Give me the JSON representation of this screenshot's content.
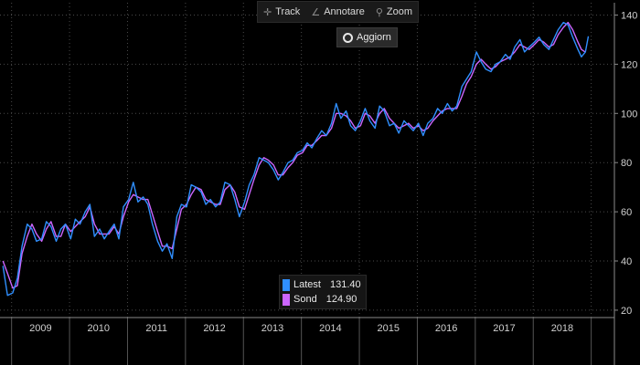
{
  "toolbar": {
    "track_label": "Track",
    "track_icon": "crosshair-icon",
    "annotate_label": "Annotare",
    "annotate_icon": "pencil-icon",
    "zoom_label": "Zoom",
    "zoom_icon": "magnifier-icon"
  },
  "refresh": {
    "label": "Aggiorn",
    "icon": "refresh-icon"
  },
  "legend": {
    "items": [
      {
        "label": "Latest",
        "value": "131.40",
        "color": "#2f8fff"
      },
      {
        "label": "Sond",
        "value": "124.90",
        "color": "#cc66ff"
      }
    ]
  },
  "chart_data": {
    "type": "line",
    "x_unit": "year (fractional)",
    "xlim": [
      2008.8,
      2019.4
    ],
    "ylim": [
      17,
      145
    ],
    "y_ticks": [
      "20",
      "40",
      "60",
      "80",
      "100",
      "120",
      "140"
    ],
    "x_tick_labels": [
      "2009",
      "2010",
      "2011",
      "2012",
      "2013",
      "2014",
      "2015",
      "2016",
      "2017",
      "2018"
    ],
    "grid": true,
    "legend_position": "bottom-center",
    "series": [
      {
        "name": "Latest",
        "color": "#2f8fff",
        "points": [
          [
            2008.85,
            38
          ],
          [
            2008.93,
            26
          ],
          [
            2009.02,
            27
          ],
          [
            2009.1,
            33
          ],
          [
            2009.18,
            46
          ],
          [
            2009.27,
            55
          ],
          [
            2009.35,
            53
          ],
          [
            2009.43,
            48
          ],
          [
            2009.52,
            49
          ],
          [
            2009.6,
            56
          ],
          [
            2009.68,
            54
          ],
          [
            2009.77,
            48
          ],
          [
            2009.85,
            53
          ],
          [
            2009.93,
            55
          ],
          [
            2010.02,
            49
          ],
          [
            2010.1,
            57
          ],
          [
            2010.18,
            55
          ],
          [
            2010.27,
            60
          ],
          [
            2010.35,
            63
          ],
          [
            2010.43,
            50
          ],
          [
            2010.52,
            53
          ],
          [
            2010.6,
            49
          ],
          [
            2010.68,
            52
          ],
          [
            2010.77,
            55
          ],
          [
            2010.85,
            49
          ],
          [
            2010.93,
            62
          ],
          [
            2011.02,
            65
          ],
          [
            2011.1,
            72
          ],
          [
            2011.18,
            64
          ],
          [
            2011.27,
            66
          ],
          [
            2011.35,
            63
          ],
          [
            2011.43,
            55
          ],
          [
            2011.52,
            48
          ],
          [
            2011.6,
            44
          ],
          [
            2011.68,
            47
          ],
          [
            2011.77,
            41
          ],
          [
            2011.85,
            58
          ],
          [
            2011.93,
            63
          ],
          [
            2012.02,
            62
          ],
          [
            2012.1,
            71
          ],
          [
            2012.18,
            70
          ],
          [
            2012.27,
            68
          ],
          [
            2012.35,
            63
          ],
          [
            2012.43,
            65
          ],
          [
            2012.52,
            62
          ],
          [
            2012.6,
            64
          ],
          [
            2012.68,
            72
          ],
          [
            2012.77,
            71
          ],
          [
            2012.85,
            65
          ],
          [
            2012.93,
            58
          ],
          [
            2013.02,
            64
          ],
          [
            2013.1,
            71
          ],
          [
            2013.18,
            75
          ],
          [
            2013.27,
            82
          ],
          [
            2013.35,
            81
          ],
          [
            2013.43,
            80
          ],
          [
            2013.52,
            77
          ],
          [
            2013.6,
            73
          ],
          [
            2013.68,
            76
          ],
          [
            2013.77,
            80
          ],
          [
            2013.85,
            81
          ],
          [
            2013.93,
            84
          ],
          [
            2014.02,
            85
          ],
          [
            2014.1,
            88
          ],
          [
            2014.18,
            86
          ],
          [
            2014.27,
            90
          ],
          [
            2014.35,
            93
          ],
          [
            2014.43,
            91
          ],
          [
            2014.52,
            96
          ],
          [
            2014.6,
            104
          ],
          [
            2014.68,
            98
          ],
          [
            2014.77,
            101
          ],
          [
            2014.85,
            95
          ],
          [
            2014.93,
            93
          ],
          [
            2015.02,
            97
          ],
          [
            2015.1,
            102
          ],
          [
            2015.18,
            97
          ],
          [
            2015.27,
            94
          ],
          [
            2015.35,
            103
          ],
          [
            2015.43,
            101
          ],
          [
            2015.52,
            95
          ],
          [
            2015.6,
            96
          ],
          [
            2015.68,
            92
          ],
          [
            2015.77,
            97
          ],
          [
            2015.85,
            95
          ],
          [
            2015.93,
            93
          ],
          [
            2016.02,
            96
          ],
          [
            2016.1,
            91
          ],
          [
            2016.18,
            96
          ],
          [
            2016.27,
            98
          ],
          [
            2016.35,
            102
          ],
          [
            2016.43,
            100
          ],
          [
            2016.52,
            104
          ],
          [
            2016.6,
            101
          ],
          [
            2016.68,
            103
          ],
          [
            2016.77,
            111
          ],
          [
            2016.85,
            114
          ],
          [
            2016.93,
            117
          ],
          [
            2017.02,
            125
          ],
          [
            2017.1,
            121
          ],
          [
            2017.18,
            118
          ],
          [
            2017.27,
            117
          ],
          [
            2017.35,
            120
          ],
          [
            2017.43,
            121
          ],
          [
            2017.52,
            124
          ],
          [
            2017.6,
            122
          ],
          [
            2017.68,
            127
          ],
          [
            2017.77,
            130
          ],
          [
            2017.85,
            125
          ],
          [
            2017.93,
            127
          ],
          [
            2018.02,
            129
          ],
          [
            2018.1,
            131
          ],
          [
            2018.18,
            128
          ],
          [
            2018.27,
            126
          ],
          [
            2018.35,
            130
          ],
          [
            2018.43,
            134
          ],
          [
            2018.52,
            137
          ],
          [
            2018.6,
            136
          ],
          [
            2018.68,
            131
          ],
          [
            2018.77,
            126
          ],
          [
            2018.83,
            123
          ],
          [
            2018.9,
            125
          ],
          [
            2018.95,
            131.4
          ]
        ]
      },
      {
        "name": "Sond",
        "color": "#cc66ff",
        "points": [
          [
            2008.85,
            40
          ],
          [
            2008.93,
            35
          ],
          [
            2009.02,
            29
          ],
          [
            2009.1,
            30
          ],
          [
            2009.18,
            43
          ],
          [
            2009.27,
            50
          ],
          [
            2009.35,
            55
          ],
          [
            2009.43,
            51
          ],
          [
            2009.52,
            48
          ],
          [
            2009.6,
            53
          ],
          [
            2009.68,
            56
          ],
          [
            2009.77,
            50
          ],
          [
            2009.85,
            50
          ],
          [
            2009.93,
            55
          ],
          [
            2010.02,
            52
          ],
          [
            2010.1,
            54
          ],
          [
            2010.18,
            56
          ],
          [
            2010.27,
            58
          ],
          [
            2010.35,
            62
          ],
          [
            2010.43,
            55
          ],
          [
            2010.52,
            51
          ],
          [
            2010.6,
            51
          ],
          [
            2010.68,
            51
          ],
          [
            2010.77,
            54
          ],
          [
            2010.85,
            51
          ],
          [
            2010.93,
            58
          ],
          [
            2011.02,
            64
          ],
          [
            2011.1,
            67
          ],
          [
            2011.18,
            66
          ],
          [
            2011.27,
            65
          ],
          [
            2011.35,
            65
          ],
          [
            2011.43,
            59
          ],
          [
            2011.52,
            52
          ],
          [
            2011.6,
            46
          ],
          [
            2011.68,
            46
          ],
          [
            2011.77,
            45
          ],
          [
            2011.85,
            53
          ],
          [
            2011.93,
            61
          ],
          [
            2012.02,
            63
          ],
          [
            2012.1,
            67
          ],
          [
            2012.18,
            70
          ],
          [
            2012.27,
            69
          ],
          [
            2012.35,
            65
          ],
          [
            2012.43,
            64
          ],
          [
            2012.52,
            63
          ],
          [
            2012.6,
            63
          ],
          [
            2012.68,
            69
          ],
          [
            2012.77,
            71
          ],
          [
            2012.85,
            68
          ],
          [
            2012.93,
            62
          ],
          [
            2013.02,
            61
          ],
          [
            2013.1,
            67
          ],
          [
            2013.18,
            73
          ],
          [
            2013.27,
            79
          ],
          [
            2013.35,
            82
          ],
          [
            2013.43,
            81
          ],
          [
            2013.52,
            79
          ],
          [
            2013.6,
            75
          ],
          [
            2013.68,
            75
          ],
          [
            2013.77,
            78
          ],
          [
            2013.85,
            80
          ],
          [
            2013.93,
            83
          ],
          [
            2014.02,
            84
          ],
          [
            2014.1,
            87
          ],
          [
            2014.18,
            87
          ],
          [
            2014.27,
            89
          ],
          [
            2014.35,
            91
          ],
          [
            2014.43,
            91
          ],
          [
            2014.52,
            94
          ],
          [
            2014.6,
            100
          ],
          [
            2014.68,
            100
          ],
          [
            2014.77,
            99
          ],
          [
            2014.85,
            97
          ],
          [
            2014.93,
            94
          ],
          [
            2015.02,
            95
          ],
          [
            2015.1,
            100
          ],
          [
            2015.18,
            99
          ],
          [
            2015.27,
            96
          ],
          [
            2015.35,
            100
          ],
          [
            2015.43,
            102
          ],
          [
            2015.52,
            98
          ],
          [
            2015.6,
            96
          ],
          [
            2015.68,
            94
          ],
          [
            2015.77,
            95
          ],
          [
            2015.85,
            96
          ],
          [
            2015.93,
            94
          ],
          [
            2016.02,
            95
          ],
          [
            2016.1,
            93
          ],
          [
            2016.18,
            94
          ],
          [
            2016.27,
            97
          ],
          [
            2016.35,
            99
          ],
          [
            2016.43,
            101
          ],
          [
            2016.52,
            102
          ],
          [
            2016.6,
            102
          ],
          [
            2016.68,
            102
          ],
          [
            2016.77,
            107
          ],
          [
            2016.85,
            112
          ],
          [
            2016.93,
            115
          ],
          [
            2017.02,
            120
          ],
          [
            2017.1,
            122
          ],
          [
            2017.18,
            120
          ],
          [
            2017.27,
            118
          ],
          [
            2017.35,
            119
          ],
          [
            2017.43,
            121
          ],
          [
            2017.52,
            122
          ],
          [
            2017.6,
            123
          ],
          [
            2017.68,
            125
          ],
          [
            2017.77,
            128
          ],
          [
            2017.85,
            127
          ],
          [
            2017.93,
            126
          ],
          [
            2018.02,
            128
          ],
          [
            2018.1,
            130
          ],
          [
            2018.18,
            129
          ],
          [
            2018.27,
            127
          ],
          [
            2018.35,
            128
          ],
          [
            2018.43,
            132
          ],
          [
            2018.52,
            135
          ],
          [
            2018.6,
            137
          ],
          [
            2018.68,
            134
          ],
          [
            2018.77,
            129
          ],
          [
            2018.83,
            126
          ],
          [
            2018.9,
            124.9
          ]
        ]
      }
    ]
  }
}
